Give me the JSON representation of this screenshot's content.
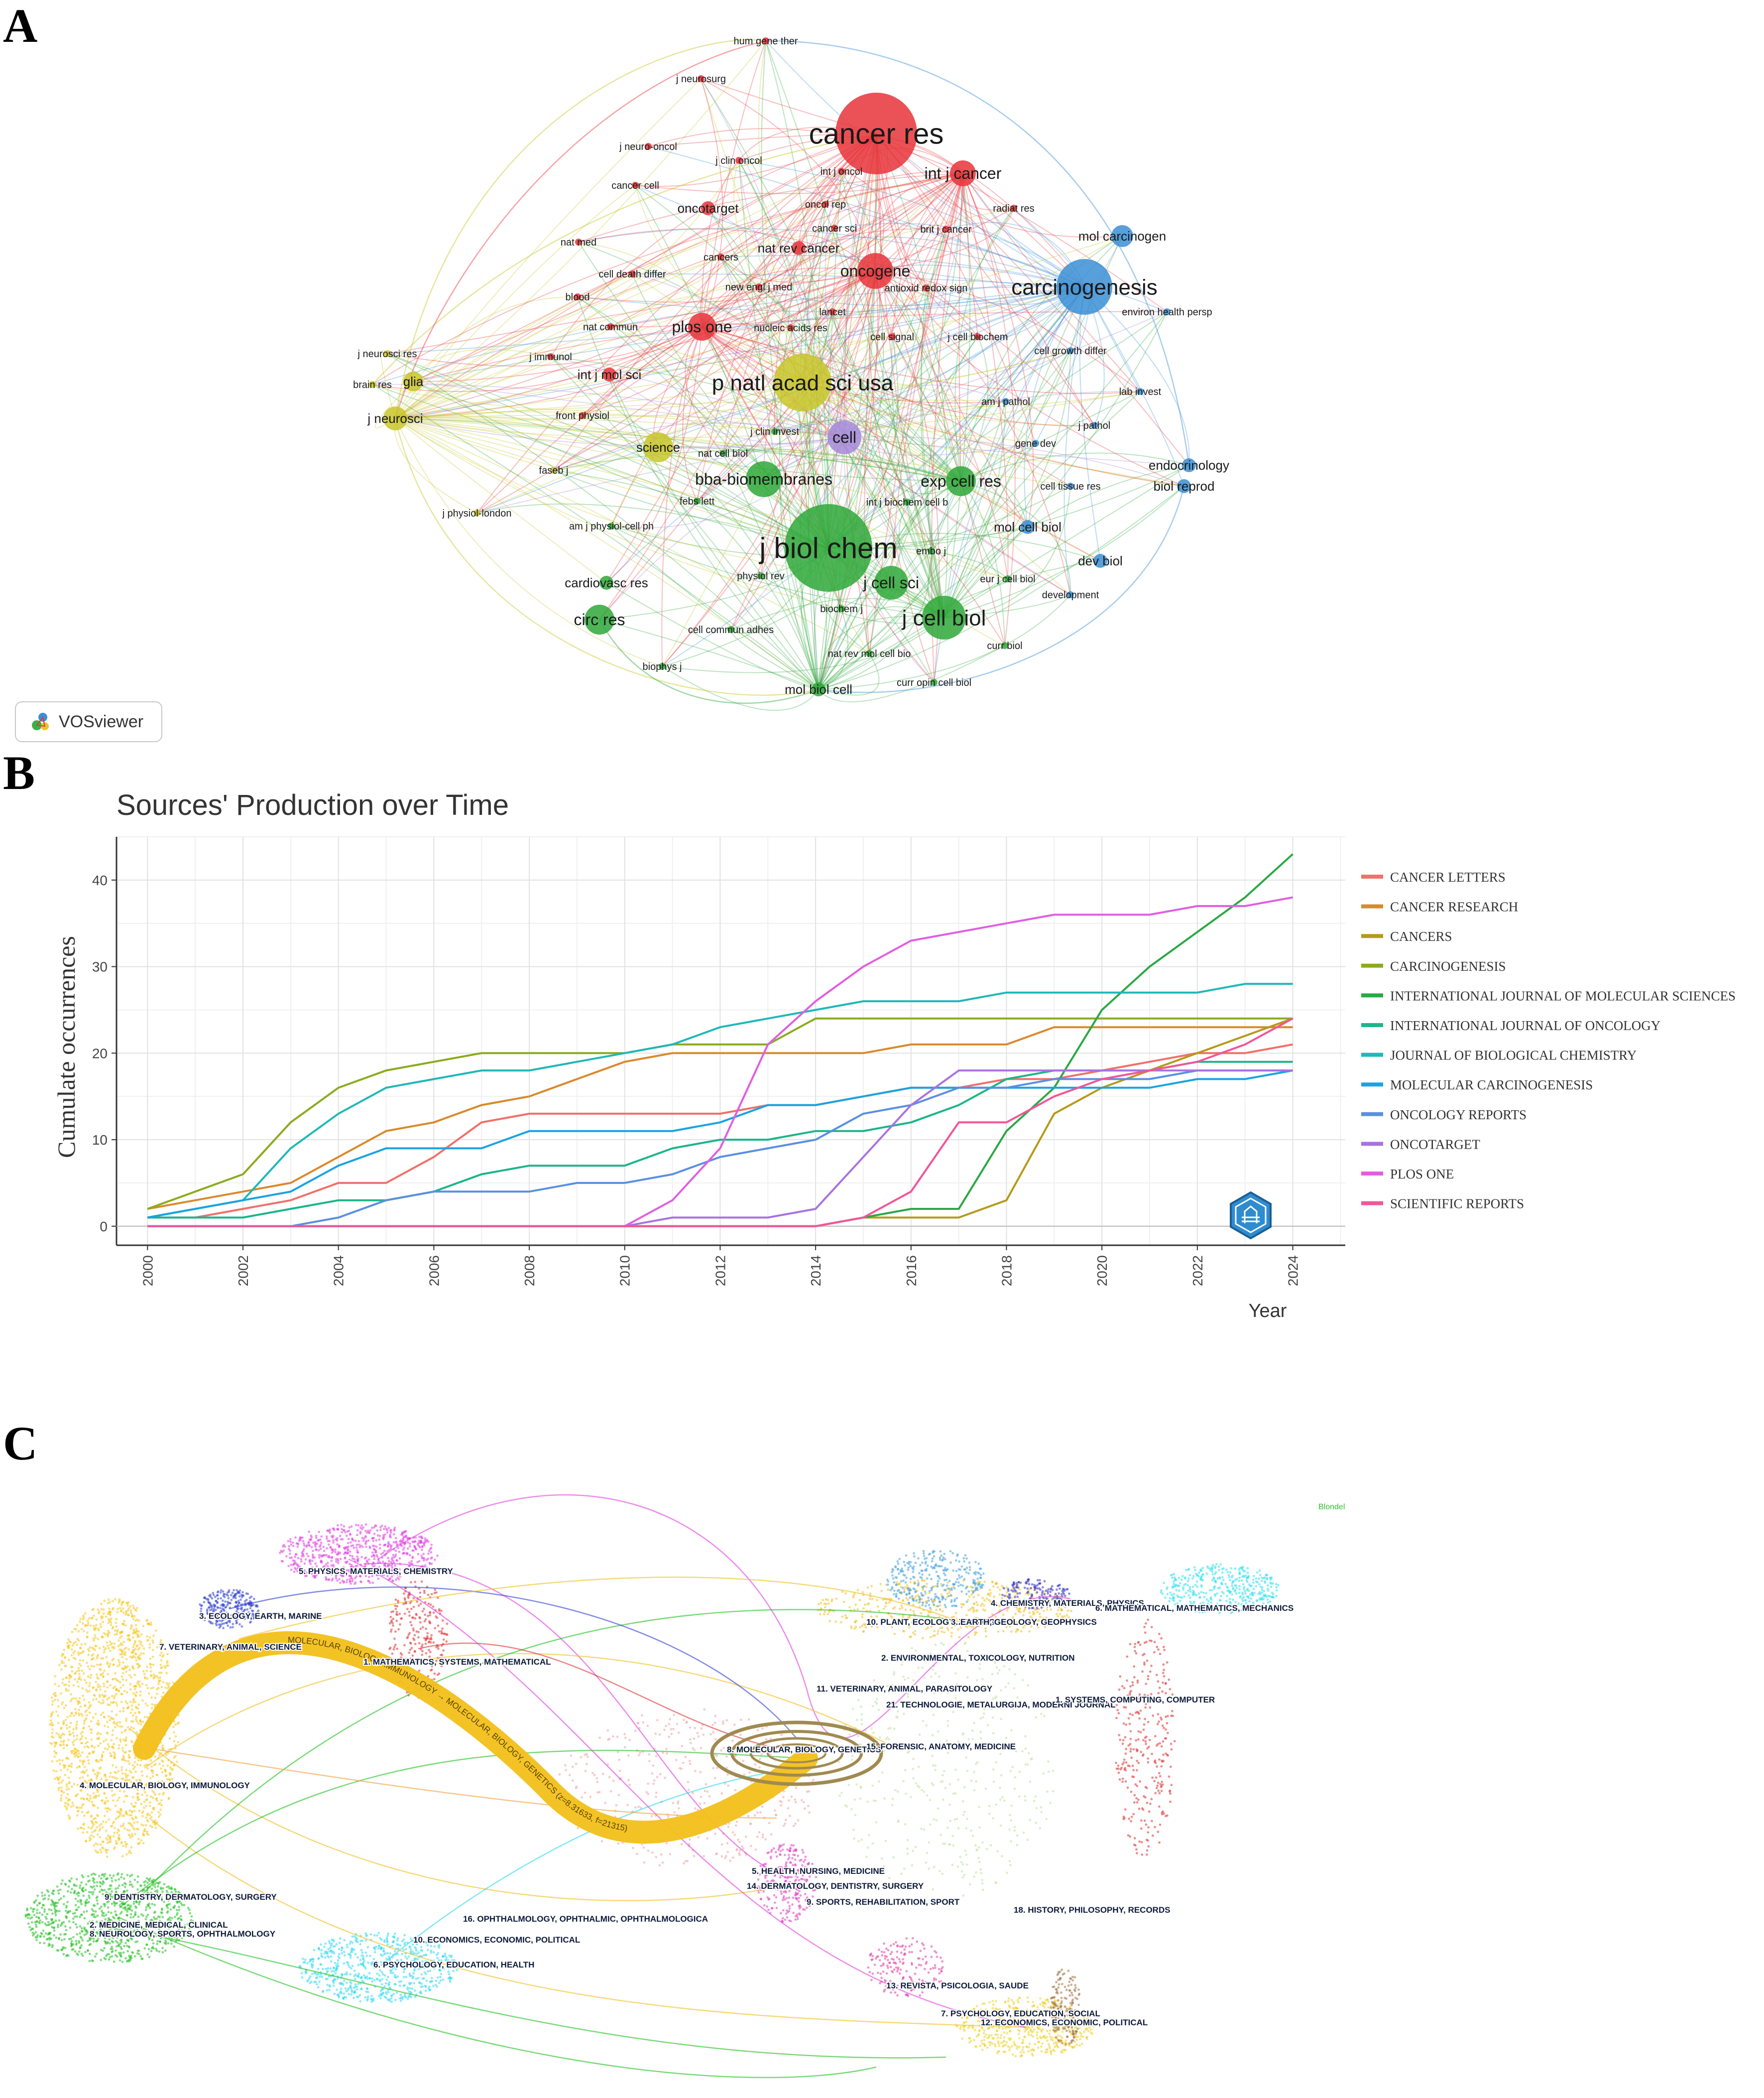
{
  "panels": {
    "a": "A",
    "b": "B",
    "c": "C"
  },
  "network": {
    "watermark": "VOSviewer",
    "clusters": {
      "red": "#e8343a",
      "blue": "#3b8fd6",
      "green": "#2fa83a",
      "yellow": "#c8c62a",
      "purple": "#a58ad8"
    },
    "nodes": [
      {
        "label": "cancer res",
        "cluster": "red",
        "size": 10
      },
      {
        "label": "carcinogenesis",
        "cluster": "blue",
        "size": 7
      },
      {
        "label": "j biol chem",
        "cluster": "green",
        "size": 10
      },
      {
        "label": "p natl acad sci usa",
        "cluster": "yellow",
        "size": 8
      },
      {
        "label": "j cell biol",
        "cluster": "green",
        "size": 7
      },
      {
        "label": "j cell sci",
        "cluster": "green",
        "size": 6
      },
      {
        "label": "oncogene",
        "cluster": "red",
        "size": 6
      },
      {
        "label": "int j cancer",
        "cluster": "red",
        "size": 5
      },
      {
        "label": "plos one",
        "cluster": "red",
        "size": 5
      },
      {
        "label": "bba-biomembranes",
        "cluster": "green",
        "size": 5
      },
      {
        "label": "exp cell res",
        "cluster": "green",
        "size": 5
      },
      {
        "label": "circ res",
        "cluster": "green",
        "size": 5
      },
      {
        "label": "science",
        "cluster": "yellow",
        "size": 4
      },
      {
        "label": "cell",
        "cluster": "purple",
        "size": 5
      },
      {
        "label": "mol carcinogen",
        "cluster": "blue",
        "size": 4
      },
      {
        "label": "j neurosci",
        "cluster": "yellow",
        "size": 4
      },
      {
        "label": "glia",
        "cluster": "yellow",
        "size": 3
      },
      {
        "label": "endocrinology",
        "cluster": "blue",
        "size": 3
      },
      {
        "label": "biol reprod",
        "cluster": "blue",
        "size": 3
      },
      {
        "label": "mol biol cell",
        "cluster": "green",
        "size": 4
      },
      {
        "label": "cardiovasc res",
        "cluster": "green",
        "size": 4
      },
      {
        "label": "int j mol sci",
        "cluster": "red",
        "size": 4
      },
      {
        "label": "oncotarget",
        "cluster": "red",
        "size": 3
      },
      {
        "label": "nat rev cancer",
        "cluster": "red",
        "size": 3
      },
      {
        "label": "mol cell biol",
        "cluster": "blue",
        "size": 3
      },
      {
        "label": "dev biol",
        "cluster": "blue",
        "size": 3
      },
      {
        "label": "development",
        "cluster": "blue",
        "size": 2
      },
      {
        "label": "hum gene ther",
        "cluster": "red",
        "size": 2
      },
      {
        "label": "j neurosurg",
        "cluster": "red",
        "size": 2
      },
      {
        "label": "j neuro-oncol",
        "cluster": "red",
        "size": 2
      },
      {
        "label": "j clin oncol",
        "cluster": "red",
        "size": 2
      },
      {
        "label": "int j oncol",
        "cluster": "red",
        "size": 2
      },
      {
        "label": "cancer cell",
        "cluster": "red",
        "size": 2
      },
      {
        "label": "oncol rep",
        "cluster": "red",
        "size": 2
      },
      {
        "label": "radiat res",
        "cluster": "red",
        "size": 2
      },
      {
        "label": "cancer sci",
        "cluster": "red",
        "size": 2
      },
      {
        "label": "brit j cancer",
        "cluster": "red",
        "size": 2
      },
      {
        "label": "nat med",
        "cluster": "red",
        "size": 2
      },
      {
        "label": "cancers",
        "cluster": "red",
        "size": 2
      },
      {
        "label": "cell death differ",
        "cluster": "red",
        "size": 2
      },
      {
        "label": "new engl j med",
        "cluster": "red",
        "size": 2
      },
      {
        "label": "antioxid redox sign",
        "cluster": "red",
        "size": 2
      },
      {
        "label": "blood",
        "cluster": "red",
        "size": 2
      },
      {
        "label": "lancet",
        "cluster": "red",
        "size": 2
      },
      {
        "label": "environ health persp",
        "cluster": "blue",
        "size": 2
      },
      {
        "label": "nat commun",
        "cluster": "red",
        "size": 2
      },
      {
        "label": "nucleic acids res",
        "cluster": "red",
        "size": 2
      },
      {
        "label": "cell signal",
        "cluster": "red",
        "size": 2
      },
      {
        "label": "j cell biochem",
        "cluster": "red",
        "size": 2
      },
      {
        "label": "j neurosci res",
        "cluster": "yellow",
        "size": 2
      },
      {
        "label": "j immunol",
        "cluster": "red",
        "size": 2
      },
      {
        "label": "cell growth differ",
        "cluster": "blue",
        "size": 2
      },
      {
        "label": "brain res",
        "cluster": "yellow",
        "size": 2
      },
      {
        "label": "lab invest",
        "cluster": "blue",
        "size": 2
      },
      {
        "label": "am j pathol",
        "cluster": "blue",
        "size": 2
      },
      {
        "label": "front physiol",
        "cluster": "red",
        "size": 2
      },
      {
        "label": "j clin invest",
        "cluster": "green",
        "size": 2
      },
      {
        "label": "j pathol",
        "cluster": "blue",
        "size": 2
      },
      {
        "label": "gene dev",
        "cluster": "blue",
        "size": 2
      },
      {
        "label": "faseb j",
        "cluster": "yellow",
        "size": 2
      },
      {
        "label": "nat cell biol",
        "cluster": "green",
        "size": 2
      },
      {
        "label": "cell tissue res",
        "cluster": "blue",
        "size": 2
      },
      {
        "label": "febs lett",
        "cluster": "green",
        "size": 2
      },
      {
        "label": "int j biochem cell b",
        "cluster": "green",
        "size": 2
      },
      {
        "label": "j physiol-london",
        "cluster": "yellow",
        "size": 2
      },
      {
        "label": "am j physiol-cell ph",
        "cluster": "green",
        "size": 2
      },
      {
        "label": "embo j",
        "cluster": "green",
        "size": 2
      },
      {
        "label": "physiol rev",
        "cluster": "green",
        "size": 2
      },
      {
        "label": "eur j cell biol",
        "cluster": "green",
        "size": 2
      },
      {
        "label": "biochem j",
        "cluster": "green",
        "size": 2
      },
      {
        "label": "cell commun adhes",
        "cluster": "green",
        "size": 2
      },
      {
        "label": "curr biol",
        "cluster": "green",
        "size": 2
      },
      {
        "label": "biophys j",
        "cluster": "green",
        "size": 2
      },
      {
        "label": "nat rev mol cell bio",
        "cluster": "green",
        "size": 2
      },
      {
        "label": "curr opin cell biol",
        "cluster": "green",
        "size": 2
      }
    ]
  },
  "chart_data": {
    "type": "line",
    "title": "Sources' Production over Time",
    "xlabel": "Year",
    "ylabel": "Cumulate occurrences",
    "xlim": [
      2000,
      2024
    ],
    "ylim": [
      0,
      45
    ],
    "x_ticks": [
      "2000",
      "2002",
      "2004",
      "2006",
      "2008",
      "2010",
      "2012",
      "2014",
      "2016",
      "2018",
      "2020",
      "2022",
      "2024"
    ],
    "y_ticks": [
      "0",
      "10",
      "20",
      "30",
      "40"
    ],
    "x": [
      2000,
      2001,
      2002,
      2003,
      2004,
      2005,
      2006,
      2007,
      2008,
      2009,
      2010,
      2011,
      2012,
      2013,
      2014,
      2015,
      2016,
      2017,
      2018,
      2019,
      2020,
      2021,
      2022,
      2023,
      2024
    ],
    "series": [
      {
        "name": "CANCER LETTERS",
        "color": "#f0706a",
        "values": [
          1,
          1,
          2,
          3,
          5,
          5,
          8,
          12,
          13,
          13,
          13,
          13,
          13,
          14,
          14,
          15,
          16,
          16,
          17,
          17,
          18,
          19,
          20,
          20,
          21
        ]
      },
      {
        "name": "CANCER RESEARCH",
        "color": "#d98a2b",
        "values": [
          2,
          3,
          4,
          5,
          8,
          11,
          12,
          14,
          15,
          17,
          19,
          20,
          20,
          20,
          20,
          20,
          21,
          21,
          21,
          23,
          23,
          23,
          23,
          23,
          23
        ]
      },
      {
        "name": "CANCERS",
        "color": "#b59a1a",
        "values": [
          0,
          0,
          0,
          0,
          0,
          0,
          0,
          0,
          0,
          0,
          0,
          0,
          0,
          0,
          0,
          1,
          1,
          1,
          3,
          13,
          16,
          18,
          20,
          22,
          24
        ]
      },
      {
        "name": "CARCINOGENESIS",
        "color": "#8bab1e",
        "values": [
          2,
          4,
          6,
          12,
          16,
          18,
          19,
          20,
          20,
          20,
          20,
          21,
          21,
          21,
          24,
          24,
          24,
          24,
          24,
          24,
          24,
          24,
          24,
          24,
          24
        ]
      },
      {
        "name": "INTERNATIONAL JOURNAL OF MOLECULAR SCIENCES",
        "color": "#2aa845",
        "values": [
          0,
          0,
          0,
          0,
          0,
          0,
          0,
          0,
          0,
          0,
          0,
          0,
          0,
          0,
          0,
          1,
          2,
          2,
          11,
          16,
          25,
          30,
          34,
          38,
          43
        ]
      },
      {
        "name": "INTERNATIONAL JOURNAL OF ONCOLOGY",
        "color": "#1bb58a",
        "values": [
          1,
          1,
          1,
          2,
          3,
          3,
          4,
          6,
          7,
          7,
          7,
          9,
          10,
          10,
          11,
          11,
          12,
          14,
          17,
          18,
          18,
          18,
          19,
          19,
          19
        ]
      },
      {
        "name": "JOURNAL OF BIOLOGICAL CHEMISTRY",
        "color": "#1fb8b8",
        "values": [
          1,
          2,
          3,
          9,
          13,
          16,
          17,
          18,
          18,
          19,
          20,
          21,
          23,
          24,
          25,
          26,
          26,
          26,
          27,
          27,
          27,
          27,
          27,
          28,
          28
        ]
      },
      {
        "name": "MOLECULAR CARCINOGENESIS",
        "color": "#1aa3e0",
        "values": [
          1,
          2,
          3,
          4,
          7,
          9,
          9,
          9,
          11,
          11,
          11,
          11,
          12,
          14,
          14,
          15,
          16,
          16,
          16,
          16,
          16,
          16,
          17,
          17,
          18
        ]
      },
      {
        "name": "ONCOLOGY REPORTS",
        "color": "#5a8fe0",
        "values": [
          0,
          0,
          0,
          0,
          1,
          3,
          4,
          4,
          4,
          5,
          5,
          6,
          8,
          9,
          10,
          13,
          14,
          16,
          16,
          17,
          17,
          17,
          18,
          18,
          18
        ]
      },
      {
        "name": "ONCOTARGET",
        "color": "#a873e0",
        "values": [
          0,
          0,
          0,
          0,
          0,
          0,
          0,
          0,
          0,
          0,
          0,
          1,
          1,
          1,
          2,
          8,
          14,
          18,
          18,
          18,
          18,
          18,
          18,
          18,
          18
        ]
      },
      {
        "name": "PLOS ONE",
        "color": "#e05fe0",
        "values": [
          0,
          0,
          0,
          0,
          0,
          0,
          0,
          0,
          0,
          0,
          0,
          3,
          9,
          21,
          26,
          30,
          33,
          34,
          35,
          36,
          36,
          36,
          37,
          37,
          38
        ]
      },
      {
        "name": "SCIENTIFIC REPORTS",
        "color": "#f0569a",
        "values": [
          0,
          0,
          0,
          0,
          0,
          0,
          0,
          0,
          0,
          0,
          0,
          0,
          0,
          0,
          0,
          1,
          4,
          12,
          12,
          15,
          17,
          18,
          19,
          21,
          24
        ]
      }
    ]
  },
  "overlay": {
    "corner_label": "Blondel",
    "main_flow_label": "MOLECULAR, BIOLOGY, IMMUNOLOGY → MOLECULAR, BIOLOGY, GENETICS (z=8.31633, f=21315)",
    "left_labels": [
      {
        "text": "5. PHYSICS, MATERIALS, CHEMISTRY",
        "color": "#e040e0"
      },
      {
        "text": "3. ECOLOGY, EARTH, MARINE",
        "color": "#3040d0"
      },
      {
        "text": "7. VETERINARY, ANIMAL, SCIENCE",
        "color": "#f0c020"
      },
      {
        "text": "1. MATHEMATICS, SYSTEMS, MATHEMATICAL",
        "color": "#e03030"
      },
      {
        "text": "4. MOLECULAR, BIOLOGY, IMMUNOLOGY",
        "color": "#f0c020"
      },
      {
        "text": "9. DENTISTRY, DERMATOLOGY, SURGERY",
        "color": "#8cd040"
      },
      {
        "text": "2. MEDICINE, MEDICAL, CLINICAL",
        "color": "#20c020"
      },
      {
        "text": "8. NEUROLOGY, SPORTS, OPHTHALMOLOGY",
        "color": "#20c020"
      },
      {
        "text": "16. OPHTHALMOLOGY, OPHTHALMIC, OPHTHALMOLOGICA",
        "color": "#40d0e0"
      },
      {
        "text": "10. ECONOMICS, ECONOMIC, POLITICAL",
        "color": "#40d0e0"
      },
      {
        "text": "6. PSYCHOLOGY, EDUCATION, HEALTH",
        "color": "#30d8f0"
      }
    ],
    "right_labels": [
      {
        "text": "4. CHEMISTRY, MATERIALS, PHYSICS",
        "color": "#3030c0"
      },
      {
        "text": "6. MATHEMATICAL, MATHEMATICS, MECHANICS",
        "color": "#30e0f0"
      },
      {
        "text": "10. PLANT, ECOLOGY, ZOOLOGY",
        "color": "#40a0e0"
      },
      {
        "text": "3. EARTH, GEOLOGY, GEOPHYSICS",
        "color": "#6060d0"
      },
      {
        "text": "2. ENVIRONMENTAL, TOXICOLOGY, NUTRITION",
        "color": "#70d040"
      },
      {
        "text": "11. VETERINARY, ANIMAL, PARASITOLOGY",
        "color": "#f0a040"
      },
      {
        "text": "21. TECHNOLOGIE, METALURGIJA, MODERNI JOURNAL",
        "color": "#a0a0a0"
      },
      {
        "text": "1. SYSTEMS, COMPUTING, COMPUTER",
        "color": "#e03030"
      },
      {
        "text": "8. MOLECULAR, BIOLOGY, GENETICS",
        "color": "#c8b070"
      },
      {
        "text": "15. FORENSIC, ANATOMY, MEDICINE",
        "color": "#a0a0a0"
      },
      {
        "text": "5. HEALTH, NURSING, MEDICINE",
        "color": "#e040c0"
      },
      {
        "text": "14. DERMATOLOGY, DENTISTRY, SURGERY",
        "color": "#c0c060"
      },
      {
        "text": "9. SPORTS, REHABILITATION, SPORT",
        "color": "#f0c020"
      },
      {
        "text": "18. HISTORY, PHILOSOPHY, RECORDS",
        "color": "#a07040"
      },
      {
        "text": "13. REVISTA, PSICOLOGIA, SAUDE",
        "color": "#e040a0"
      },
      {
        "text": "7. PSYCHOLOGY, EDUCATION, SOCIAL",
        "color": "#f0d020"
      },
      {
        "text": "12. ECONOMICS, ECONOMIC, POLITICAL",
        "color": "#806040"
      }
    ]
  }
}
